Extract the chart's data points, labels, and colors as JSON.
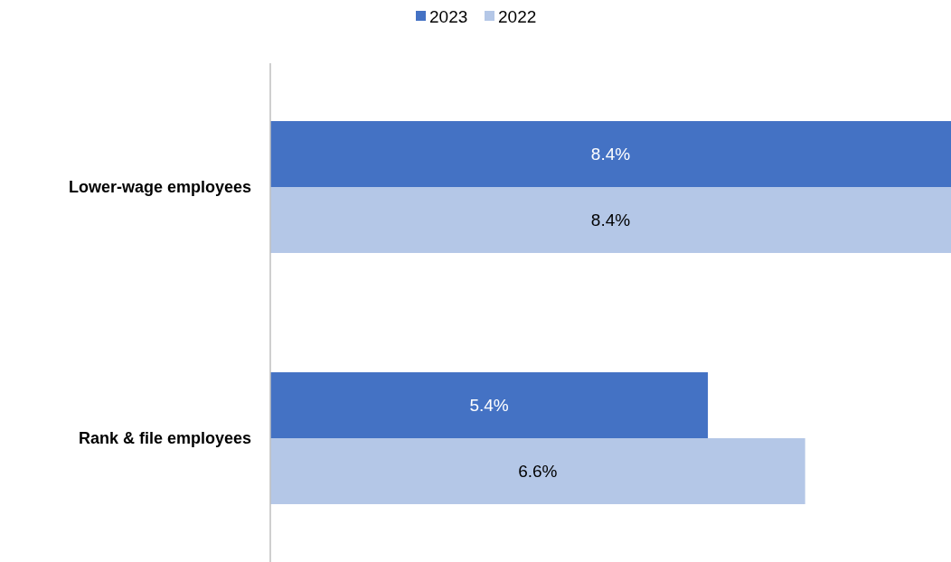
{
  "chart_data": {
    "type": "bar",
    "orientation": "horizontal",
    "categories": [
      "Lower-wage employees",
      "Rank & file employees"
    ],
    "series": [
      {
        "name": "2023",
        "color": "#4472c4",
        "values": [
          8.4,
          5.4
        ],
        "value_labels": [
          "8.4%",
          "5.4%"
        ]
      },
      {
        "name": "2022",
        "color": "#b4c7e7",
        "values": [
          8.4,
          6.6
        ],
        "value_labels": [
          "8.4%",
          "6.6%"
        ]
      }
    ],
    "legend": "top"
  }
}
